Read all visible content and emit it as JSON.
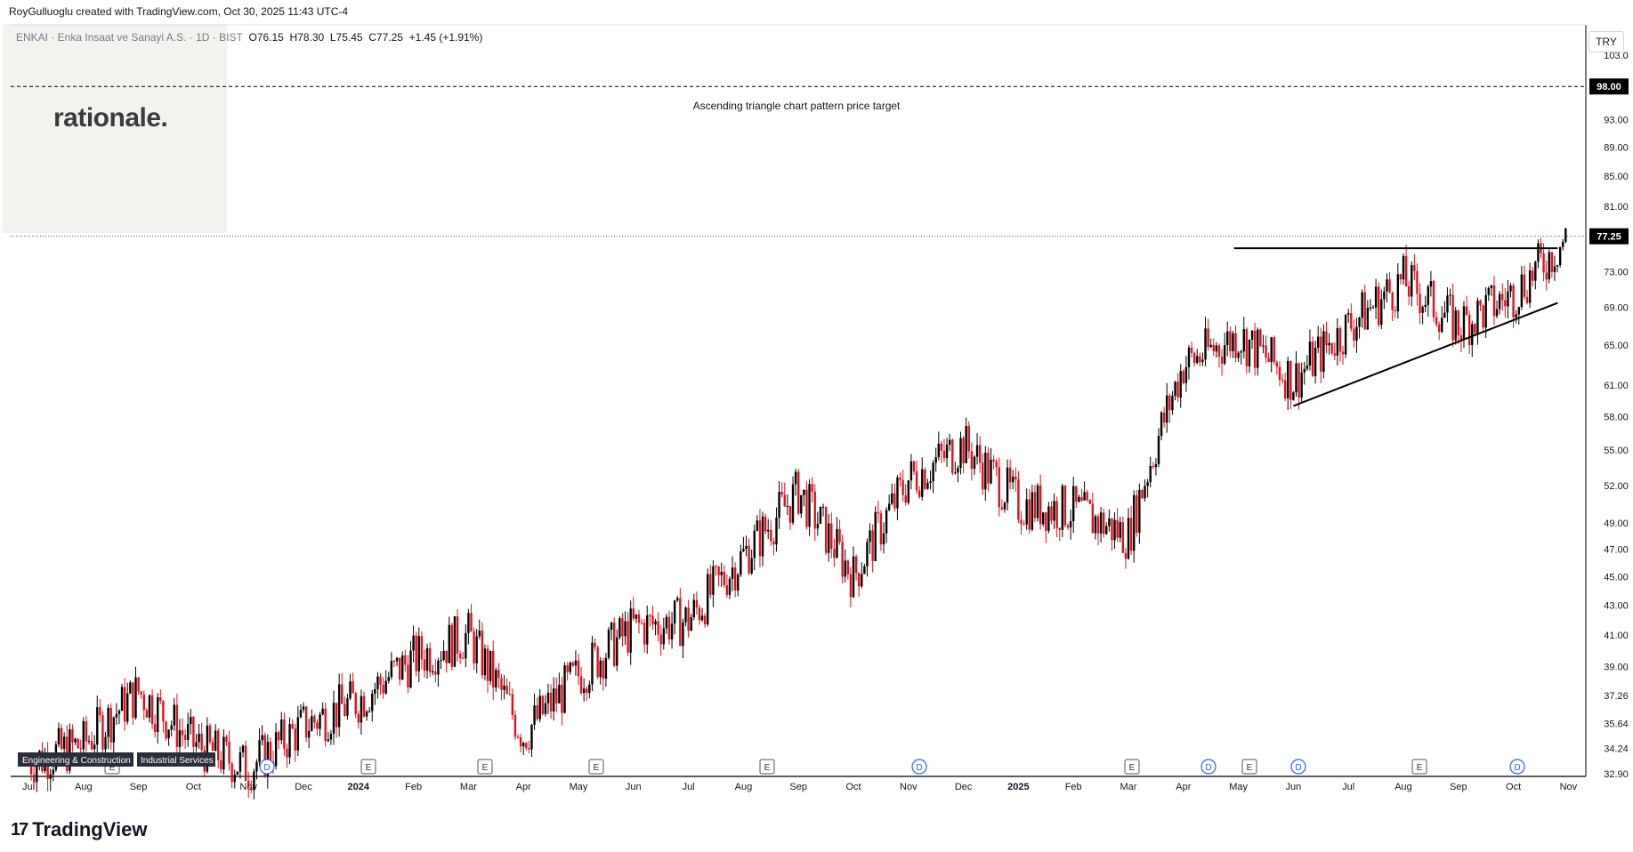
{
  "header": {
    "credit": "RoyGulluoglu created with TradingView.com, Oct 30, 2025 11:43 UTC-4"
  },
  "symbol": {
    "name": "ENKAI · Enka Insaat ve Sanayi A.S. · 1D · BIST",
    "open": "O76.15",
    "high": "H78.30",
    "low": "L75.45",
    "close": "C77.25",
    "change": "+1.45 (+1.91%)"
  },
  "logo_text": "rationale.",
  "currency": "TRY",
  "annotation": "Ascending triangle chart pattern price target",
  "tags": {
    "sector": "Engineering & Construction",
    "industry": "Industrial Services"
  },
  "brand": "TradingView",
  "colors": {
    "up": "#000000",
    "down": "#e0101f",
    "line": "#000000",
    "grid": "#ffffff",
    "axis_text": "#131722"
  },
  "chart_data": {
    "type": "candlestick",
    "xlabels": [
      "Jul",
      "Aug",
      "Sep",
      "Oct",
      "Nov",
      "Dec",
      "2024",
      "Feb",
      "Mar",
      "Apr",
      "May",
      "Jun",
      "Jul",
      "Aug",
      "Sep",
      "Oct",
      "Nov",
      "Dec",
      "2025",
      "Feb",
      "Mar",
      "Apr",
      "May",
      "Jun",
      "Jul",
      "Aug",
      "Sep",
      "Oct",
      "Nov"
    ],
    "xlabel_bold": [
      "2024",
      "2025"
    ],
    "yticks": [
      "103.0",
      "98.00",
      "93.00",
      "89.00",
      "85.00",
      "81.00",
      "77.25",
      "73.00",
      "69.00",
      "65.00",
      "61.00",
      "58.00",
      "55.00",
      "52.00",
      "49.00",
      "47.00",
      "45.00",
      "43.00",
      "41.00",
      "39.00",
      "37.26",
      "35.64",
      "34.24",
      "32.90"
    ],
    "scale": "log",
    "ylim": [
      32.9,
      103.0
    ],
    "last_price": 77.25,
    "target_price": 98.0,
    "price_path": [
      [
        "Jul",
        33.5
      ],
      [
        "Aug",
        34.5
      ],
      [
        "Sep",
        37.5
      ],
      [
        "Oct",
        34.5
      ],
      [
        "Nov",
        33.2
      ],
      [
        "Dec",
        35.5
      ],
      [
        "2024",
        37.0
      ],
      [
        "Feb",
        39.5
      ],
      [
        "Mar",
        41.0
      ],
      [
        "Apr",
        35.0
      ],
      [
        "May",
        38.5
      ],
      [
        "Jun",
        41.5
      ],
      [
        "Jul",
        42.0
      ],
      [
        "Aug",
        46.5
      ],
      [
        "Sep",
        51.5
      ],
      [
        "Oct",
        45.0
      ],
      [
        "Nov",
        52.5
      ],
      [
        "Dec",
        55.5
      ],
      [
        "2025",
        50.5
      ],
      [
        "Feb",
        50.0
      ],
      [
        "Mar",
        48.0
      ],
      [
        "Apr",
        63.0
      ],
      [
        "May",
        66.0
      ],
      [
        "Jun",
        61.5
      ],
      [
        "Jul",
        67.0
      ],
      [
        "Aug",
        72.0
      ],
      [
        "Sep",
        67.0
      ],
      [
        "Oct",
        70.5
      ],
      [
        "Nov",
        77.25
      ]
    ],
    "resistance": {
      "from": "May",
      "to": "Nov",
      "price": 75.8
    },
    "support": {
      "from": "Jun",
      "from_price": 59.0,
      "to": "Nov",
      "to_price": 69.5
    },
    "events": [
      "E",
      "D",
      "E",
      "E",
      "E",
      "E",
      "D",
      "E",
      "D",
      "E",
      "D",
      "E",
      "D"
    ]
  }
}
